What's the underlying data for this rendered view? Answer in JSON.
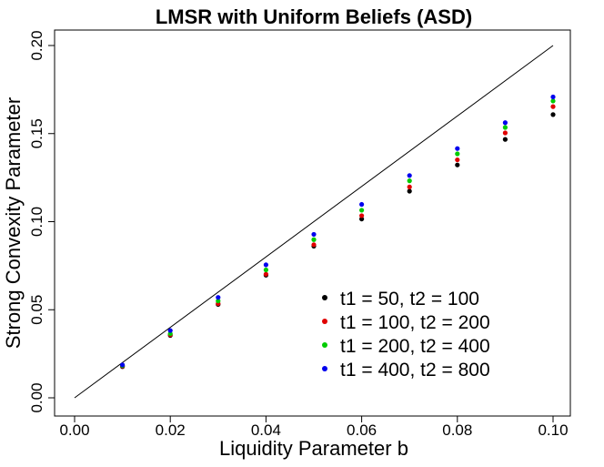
{
  "chart_data": {
    "type": "scatter",
    "title": "LMSR with  Uniform Beliefs (ASD)",
    "xlabel": "Liquidity Parameter b",
    "ylabel": "Strong Convexity Parameter",
    "xlim": [
      0.0,
      0.1
    ],
    "ylim": [
      0.0,
      0.2
    ],
    "xticks": [
      "0.00",
      "0.02",
      "0.04",
      "0.06",
      "0.08",
      "0.10"
    ],
    "yticks": [
      "0.00",
      "0.05",
      "0.10",
      "0.15",
      "0.20"
    ],
    "grid": false,
    "reference_line": {
      "x": [
        0.0,
        0.1
      ],
      "y": [
        0.0,
        0.2
      ],
      "color": "#000000"
    },
    "legend_position": "bottom-right",
    "x": [
      0.01,
      0.02,
      0.03,
      0.04,
      0.05,
      0.06,
      0.07,
      0.08,
      0.09,
      0.1
    ],
    "series": [
      {
        "name": "t1 = 50, t2 = 100",
        "color": "#000000",
        "values": [
          0.0177,
          0.0354,
          0.053,
          0.0696,
          0.0861,
          0.1015,
          0.1173,
          0.1322,
          0.1467,
          0.1608
        ]
      },
      {
        "name": "t1 = 100, t2 = 200",
        "color": "#e00000",
        "values": [
          0.018,
          0.0358,
          0.0535,
          0.0702,
          0.0869,
          0.1034,
          0.1197,
          0.1351,
          0.1504,
          0.1653
        ]
      },
      {
        "name": "t1 = 200, t2 = 400",
        "color": "#00cc00",
        "values": [
          0.0183,
          0.0364,
          0.055,
          0.0726,
          0.0898,
          0.1065,
          0.1232,
          0.1385,
          0.1535,
          0.1685
        ]
      },
      {
        "name": "t1 = 400, t2 = 800",
        "color": "#0000ee",
        "values": [
          0.0187,
          0.0382,
          0.057,
          0.0755,
          0.0928,
          0.1098,
          0.1262,
          0.1415,
          0.1562,
          0.1708
        ]
      }
    ]
  }
}
